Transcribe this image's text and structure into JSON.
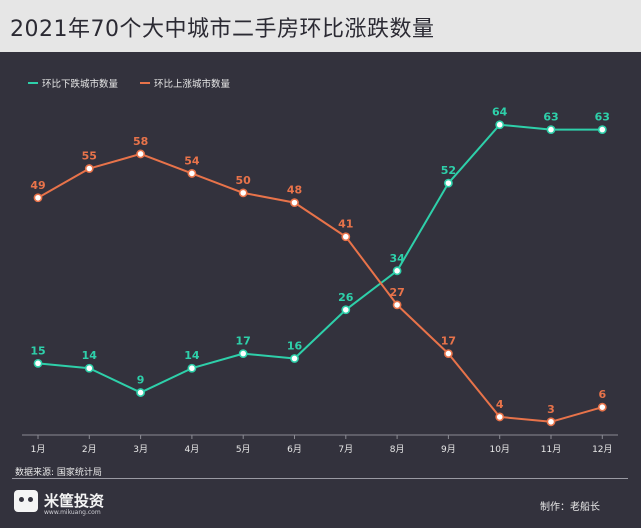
{
  "title": "2021年70个大中城市二手房环比涨跌数量",
  "footer": {
    "source": "数据来源: 国家统计局",
    "brand_name": "米筐投资",
    "brand_url": "www.mikuang.com",
    "maker": "制作：老船长"
  },
  "colors": {
    "background": "#33323d",
    "header_background": "#e6e6e6",
    "down_series": "#2ed0aa",
    "up_series": "#e8734a"
  },
  "chart_data": {
    "type": "line",
    "title": "2021年70个大中城市二手房环比涨跌数量",
    "xlabel": "",
    "ylabel": "",
    "categories": [
      "1月",
      "2月",
      "3月",
      "4月",
      "5月",
      "6月",
      "7月",
      "8月",
      "9月",
      "10月",
      "11月",
      "12月"
    ],
    "ylim": [
      0,
      70
    ],
    "grid": false,
    "legend_position": "top-left",
    "series": [
      {
        "name": "环比下跌城市数量",
        "color": "#2ed0aa",
        "values": [
          15,
          14,
          9,
          14,
          17,
          16,
          26,
          34,
          52,
          64,
          63,
          63
        ]
      },
      {
        "name": "环比上涨城市数量",
        "color": "#e8734a",
        "values": [
          49,
          55,
          58,
          54,
          50,
          48,
          41,
          27,
          17,
          4,
          3,
          6
        ]
      }
    ]
  }
}
